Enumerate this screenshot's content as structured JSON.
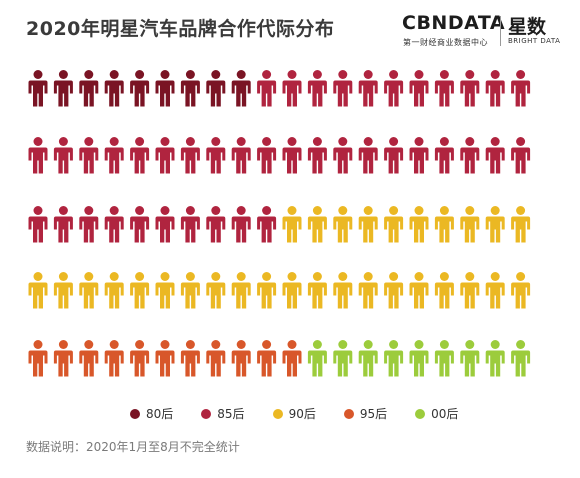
{
  "title": "2020年明星汽车品牌合作代际分布",
  "brand": {
    "cbndata": "CBNDATA",
    "cbndata_sub": "第一财经商业数据中心",
    "xingshu": "星数",
    "xingshu_sub": "BRIGHT DATA"
  },
  "note": "数据说明：2020年1月至8月不完全统计",
  "chart_data": {
    "type": "pictogram",
    "icons_per_row": 20,
    "rows": 5,
    "total_icons": 100,
    "series": [
      {
        "name": "80后",
        "color": "#7a1424",
        "count": 9
      },
      {
        "name": "85后",
        "color": "#b0243f",
        "count": 41
      },
      {
        "name": "90后",
        "color": "#ebb823",
        "count": 30
      },
      {
        "name": "95后",
        "color": "#d8572a",
        "count": 11
      },
      {
        "name": "00后",
        "color": "#9ccc3c",
        "count": 9
      }
    ]
  }
}
